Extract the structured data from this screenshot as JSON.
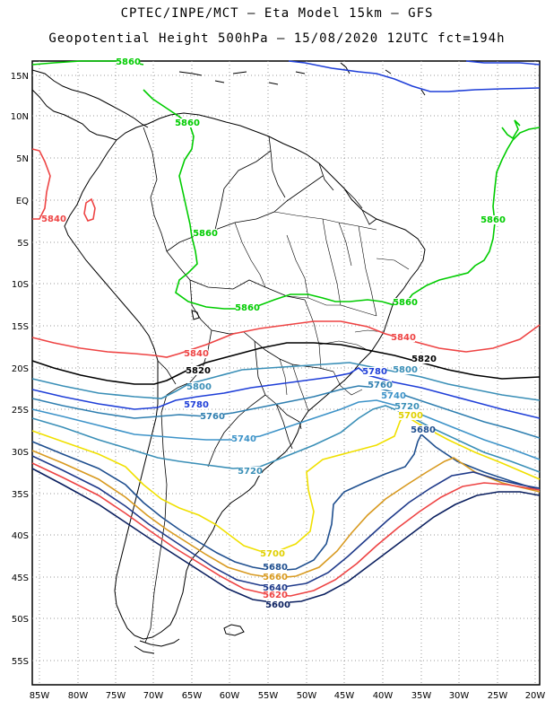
{
  "title_line1": "CPTEC/INPE/MCT –  Eta Model 15km – GFS",
  "title_line2": "Geopotential Height 500hPa – 15/08/2020 12UTC fct=194h",
  "lat_labels": [
    "15N",
    "10N",
    "5N",
    "EQ",
    "5S",
    "10S",
    "15S",
    "20S",
    "25S",
    "30S",
    "35S",
    "40S",
    "45S",
    "50S",
    "55S"
  ],
  "lon_labels": [
    "85W",
    "80W",
    "75W",
    "70W",
    "65W",
    "60W",
    "55W",
    "50W",
    "45W",
    "40W",
    "35W",
    "30W",
    "25W",
    "20W"
  ],
  "colors": {
    "c5860": "#00cc00",
    "c5840": "#ee4444",
    "c5820": "#000000",
    "c5800": "#3a8fb7",
    "c5780": "#1f3fd8",
    "c5760": "#2f7fb0",
    "c5740": "#3d93c8",
    "c5720": "#3a8fb7",
    "c5700": "#f0e000",
    "c5680": "#1f4f8f",
    "c5660": "#d89a20",
    "c5640": "#1f3a8a",
    "c5620": "#ee4444",
    "c5600": "#0a1f5f",
    "c5880": "#1f3fd8",
    "coast": "#000000",
    "grid": "#999999"
  },
  "contour_labels": [
    {
      "id": "l5860a",
      "text": "5860",
      "color": "#00cc00"
    },
    {
      "id": "l5860b",
      "text": "5860",
      "color": "#00cc00"
    },
    {
      "id": "l5860c",
      "text": "5860",
      "color": "#00cc00"
    },
    {
      "id": "l5860d",
      "text": "5860",
      "color": "#00cc00"
    },
    {
      "id": "l5860e",
      "text": "5860",
      "color": "#00cc00"
    },
    {
      "id": "l5860f",
      "text": "5860",
      "color": "#00cc00"
    },
    {
      "id": "l5840a",
      "text": "5840",
      "color": "#ee4444"
    },
    {
      "id": "l5840b",
      "text": "5840",
      "color": "#ee4444"
    },
    {
      "id": "l5840c",
      "text": "5840",
      "color": "#ee4444"
    },
    {
      "id": "l5820a",
      "text": "5820",
      "color": "#000000"
    },
    {
      "id": "l5820b",
      "text": "5820",
      "color": "#000000"
    },
    {
      "id": "l5800a",
      "text": "5800",
      "color": "#3a8fb7"
    },
    {
      "id": "l5800b",
      "text": "5800",
      "color": "#3a8fb7"
    },
    {
      "id": "l5780a",
      "text": "5780",
      "color": "#1f3fd8"
    },
    {
      "id": "l5780b",
      "text": "5780",
      "color": "#1f3fd8"
    },
    {
      "id": "l5760a",
      "text": "5760",
      "color": "#2f7fb0"
    },
    {
      "id": "l5760b",
      "text": "5760",
      "color": "#2f7fb0"
    },
    {
      "id": "l5740a",
      "text": "5740",
      "color": "#3d93c8"
    },
    {
      "id": "l5740b",
      "text": "5740",
      "color": "#3d93c8"
    },
    {
      "id": "l5720a",
      "text": "5720",
      "color": "#3a8fb7"
    },
    {
      "id": "l5720b",
      "text": "5720",
      "color": "#3a8fb7"
    },
    {
      "id": "l5700a",
      "text": "5700",
      "color": "#e0d000"
    },
    {
      "id": "l5700b",
      "text": "5700",
      "color": "#e0d000"
    },
    {
      "id": "l5680a",
      "text": "5680",
      "color": "#1f4f8f"
    },
    {
      "id": "l5680b",
      "text": "5680",
      "color": "#1f4f8f"
    },
    {
      "id": "l5660",
      "text": "5660",
      "color": "#d89a20"
    },
    {
      "id": "l5640",
      "text": "5640",
      "color": "#1f3a8a"
    },
    {
      "id": "l5620",
      "text": "5620",
      "color": "#ee4444"
    },
    {
      "id": "l5600",
      "text": "5600",
      "color": "#0a1f5f"
    }
  ]
}
